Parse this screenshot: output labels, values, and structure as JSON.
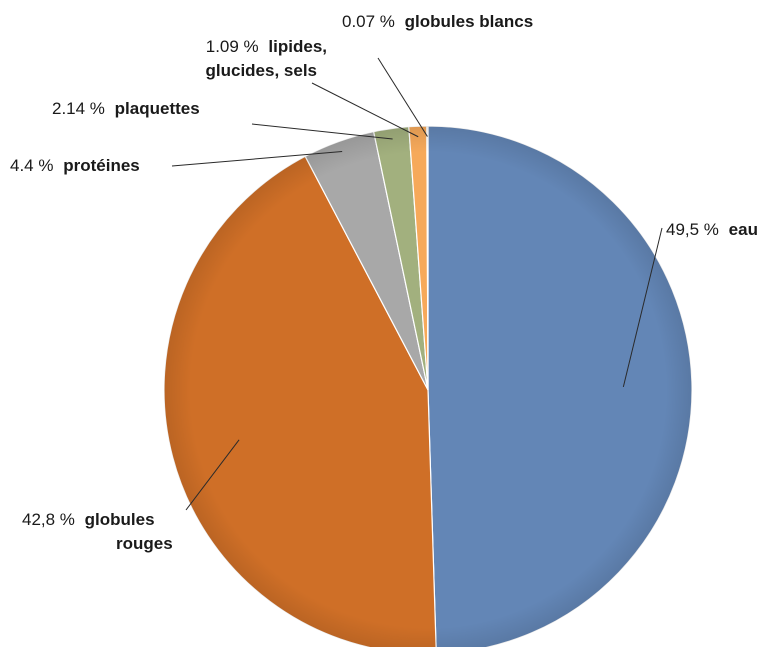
{
  "chart_data": {
    "type": "pie",
    "start": "12 o'clock",
    "direction": "clockwise",
    "slices": [
      {
        "key": "eau",
        "value": 49.5,
        "pct": "49,5 %",
        "lines": [
          "eau"
        ],
        "color": "#6386b6"
      },
      {
        "key": "globules_rouges",
        "value": 42.8,
        "pct": "42,8 %",
        "lines": [
          "globules",
          "rouges"
        ],
        "color": "#cf6f27"
      },
      {
        "key": "proteines",
        "value": 4.4,
        "pct": "4.4 %",
        "lines": [
          "protéines"
        ],
        "color": "#a8a8a8"
      },
      {
        "key": "plaquettes",
        "value": 2.14,
        "pct": "2.14 %",
        "lines": [
          "plaquettes"
        ],
        "color": "#a2b07e"
      },
      {
        "key": "lipides",
        "value": 1.09,
        "pct": "1.09 %",
        "lines": [
          "lipides,",
          "glucides, sels"
        ],
        "color": "#f6a95a"
      },
      {
        "key": "globules_blancs",
        "value": 0.07,
        "pct": "0.07 %",
        "lines": [
          "globules blancs"
        ],
        "color": "#c8cdd6"
      }
    ]
  }
}
